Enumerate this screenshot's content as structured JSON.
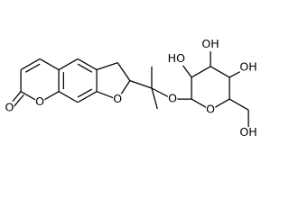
{
  "atoms": [
    {
      "label": "O"
    },
    {
      "label": "O"
    },
    {
      "label": "O"
    },
    {
      "label": "O"
    },
    {
      "label": "HO"
    },
    {
      "label": "OH"
    },
    {
      "label": "OH"
    },
    {
      "label": "O"
    },
    {
      "label": "OH"
    }
  ]
}
